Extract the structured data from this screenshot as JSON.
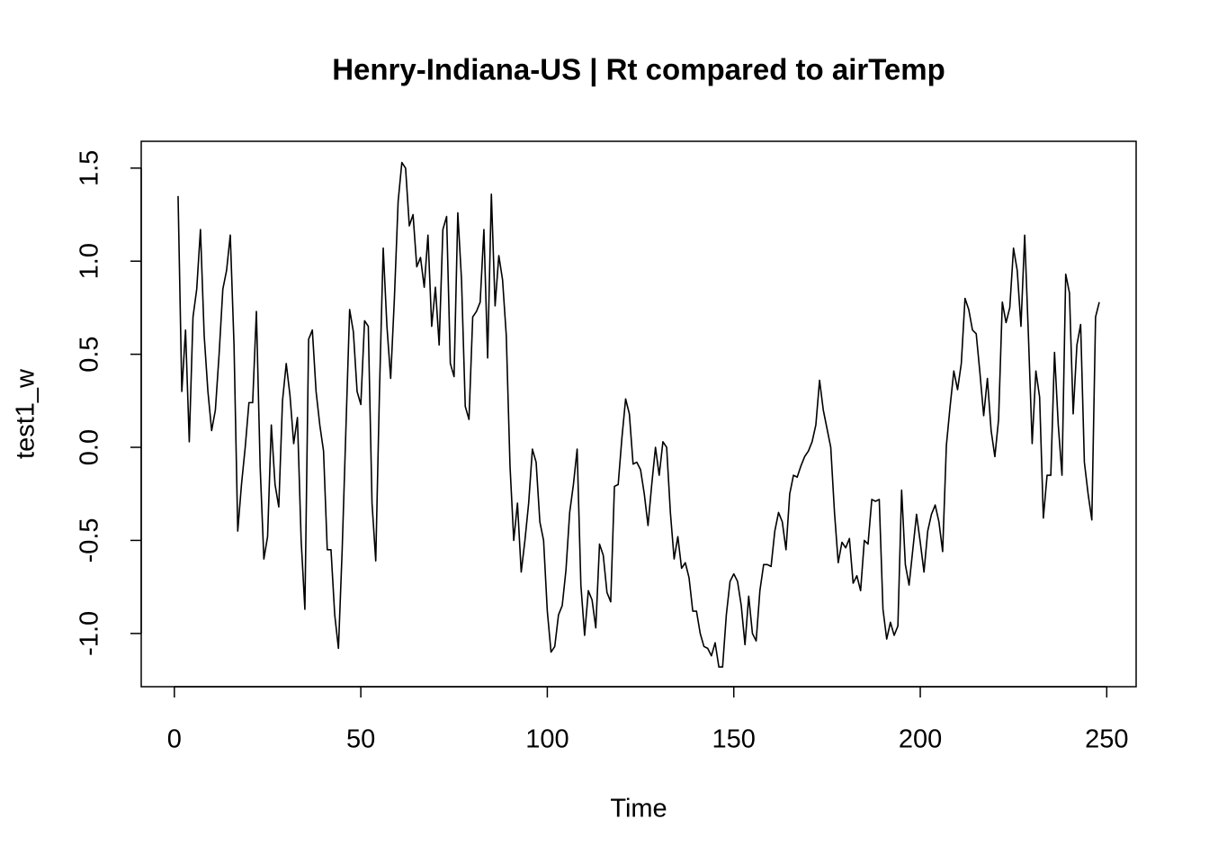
{
  "chart_data": {
    "type": "line",
    "title": "Henry-Indiana-US | Rt compared to airTemp",
    "xlabel": "Time",
    "ylabel": "test1_w",
    "color": "#000000",
    "x": [
      1,
      2,
      3,
      4,
      5,
      6,
      7,
      8,
      9,
      10,
      11,
      12,
      13,
      14,
      15,
      16,
      17,
      18,
      19,
      20,
      21,
      22,
      23,
      24,
      25,
      26,
      27,
      28,
      29,
      30,
      31,
      32,
      33,
      34,
      35,
      36,
      37,
      38,
      39,
      40,
      41,
      42,
      43,
      44,
      45,
      46,
      47,
      48,
      49,
      50,
      51,
      52,
      53,
      54,
      55,
      56,
      57,
      58,
      59,
      60,
      61,
      62,
      63,
      64,
      65,
      66,
      67,
      68,
      69,
      70,
      71,
      72,
      73,
      74,
      75,
      76,
      77,
      78,
      79,
      80,
      81,
      82,
      83,
      84,
      85,
      86,
      87,
      88,
      89,
      90,
      91,
      92,
      93,
      94,
      95,
      96,
      97,
      98,
      99,
      100,
      101,
      102,
      103,
      104,
      105,
      106,
      107,
      108,
      109,
      110,
      111,
      112,
      113,
      114,
      115,
      116,
      117,
      118,
      119,
      120,
      121,
      122,
      123,
      124,
      125,
      126,
      127,
      128,
      129,
      130,
      131,
      132,
      133,
      134,
      135,
      136,
      137,
      138,
      139,
      140,
      141,
      142,
      143,
      144,
      145,
      146,
      147,
      148,
      149,
      150,
      151,
      152,
      153,
      154,
      155,
      156,
      157,
      158,
      159,
      160,
      161,
      162,
      163,
      164,
      165,
      166,
      167,
      168,
      169,
      170,
      171,
      172,
      173,
      174,
      175,
      176,
      177,
      178,
      179,
      180,
      181,
      182,
      183,
      184,
      185,
      186,
      187,
      188,
      189,
      190,
      191,
      192,
      193,
      194,
      195,
      196,
      197,
      198,
      199,
      200,
      201,
      202,
      203,
      204,
      205,
      206,
      207,
      208,
      209,
      210,
      211,
      212,
      213,
      214,
      215,
      216,
      217,
      218,
      219,
      220,
      221,
      222,
      223,
      224,
      225,
      226,
      227,
      228,
      229,
      230,
      231,
      232,
      233,
      234,
      235,
      236,
      237,
      238,
      239,
      240,
      241,
      242,
      243,
      244,
      245,
      246,
      247,
      248
    ],
    "values": [
      1.35,
      0.3,
      0.63,
      0.03,
      0.7,
      0.85,
      1.17,
      0.6,
      0.3,
      0.09,
      0.2,
      0.5,
      0.85,
      0.95,
      1.14,
      0.55,
      -0.45,
      -0.2,
      0.0,
      0.24,
      0.24,
      0.73,
      -0.1,
      -0.6,
      -0.48,
      0.12,
      -0.2,
      -0.32,
      0.25,
      0.45,
      0.28,
      0.02,
      0.16,
      -0.5,
      -0.87,
      0.58,
      0.63,
      0.3,
      0.12,
      -0.02,
      -0.55,
      -0.55,
      -0.9,
      -1.08,
      -0.55,
      0.1,
      0.74,
      0.62,
      0.3,
      0.23,
      0.68,
      0.65,
      -0.3,
      -0.61,
      0.3,
      1.07,
      0.65,
      0.37,
      0.8,
      1.32,
      1.53,
      1.5,
      1.19,
      1.25,
      0.97,
      1.02,
      0.86,
      1.14,
      0.65,
      0.86,
      0.55,
      1.17,
      1.24,
      0.45,
      0.38,
      1.26,
      0.9,
      0.22,
      0.15,
      0.7,
      0.73,
      0.78,
      1.17,
      0.48,
      1.36,
      0.76,
      1.03,
      0.9,
      0.6,
      -0.1,
      -0.5,
      -0.3,
      -0.67,
      -0.5,
      -0.3,
      -0.01,
      -0.08,
      -0.4,
      -0.5,
      -0.88,
      -1.1,
      -1.07,
      -0.9,
      -0.85,
      -0.66,
      -0.35,
      -0.2,
      -0.01,
      -0.74,
      -1.01,
      -0.77,
      -0.82,
      -0.97,
      -0.52,
      -0.58,
      -0.78,
      -0.83,
      -0.21,
      -0.2,
      0.05,
      0.26,
      0.18,
      -0.09,
      -0.08,
      -0.12,
      -0.25,
      -0.42,
      -0.2,
      0.0,
      -0.15,
      0.03,
      0.0,
      -0.35,
      -0.6,
      -0.48,
      -0.65,
      -0.62,
      -0.7,
      -0.88,
      -0.88,
      -1.0,
      -1.07,
      -1.08,
      -1.12,
      -1.05,
      -1.18,
      -1.18,
      -0.9,
      -0.72,
      -0.68,
      -0.72,
      -0.85,
      -1.06,
      -0.8,
      -1.0,
      -1.04,
      -0.77,
      -0.63,
      -0.63,
      -0.64,
      -0.45,
      -0.35,
      -0.4,
      -0.55,
      -0.25,
      -0.15,
      -0.16,
      -0.1,
      -0.05,
      -0.02,
      0.03,
      0.12,
      0.36,
      0.2,
      0.1,
      0.0,
      -0.35,
      -0.62,
      -0.51,
      -0.54,
      -0.49,
      -0.73,
      -0.69,
      -0.77,
      -0.5,
      -0.52,
      -0.28,
      -0.29,
      -0.28,
      -0.87,
      -1.03,
      -0.94,
      -1.01,
      -0.96,
      -0.23,
      -0.63,
      -0.74,
      -0.55,
      -0.36,
      -0.51,
      -0.67,
      -0.45,
      -0.36,
      -0.31,
      -0.4,
      -0.56,
      0.01,
      0.22,
      0.41,
      0.31,
      0.45,
      0.8,
      0.74,
      0.63,
      0.61,
      0.4,
      0.17,
      0.37,
      0.09,
      -0.05,
      0.15,
      0.78,
      0.67,
      0.75,
      1.07,
      0.95,
      0.65,
      1.14,
      0.6,
      0.02,
      0.41,
      0.27,
      -0.38,
      -0.15,
      -0.15,
      0.51,
      0.12,
      -0.15,
      0.93,
      0.83,
      0.18,
      0.55,
      0.66,
      -0.08,
      -0.25,
      -0.39,
      0.7,
      0.78
    ],
    "xlim": [
      -8.88,
      257.88
    ],
    "ylim": [
      -1.286,
      1.644
    ],
    "xticks": [
      0,
      50,
      100,
      150,
      200,
      250
    ],
    "yticks": [
      {
        "value": -1,
        "label": "-1.0"
      },
      -0.5,
      {
        "value": 0,
        "label": "0.0"
      },
      0.5,
      {
        "value": 1,
        "label": "1.0"
      },
      1.5
    ]
  }
}
